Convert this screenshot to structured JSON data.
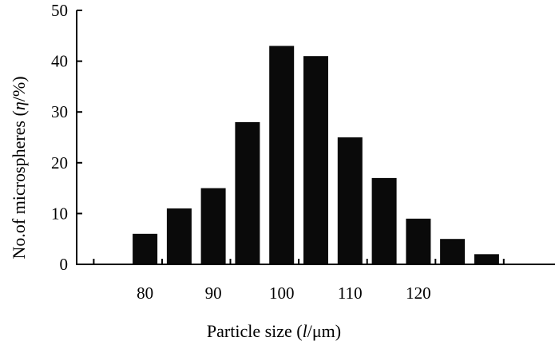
{
  "chart_data": {
    "type": "bar",
    "categories": [
      "80",
      "85",
      "90",
      "95",
      "100",
      "105",
      "110",
      "115",
      "120",
      "125",
      "130"
    ],
    "values": [
      6,
      11,
      15,
      28,
      43,
      41,
      25,
      17,
      9,
      5,
      2
    ],
    "xlabel": {
      "prefix": "Particle size (",
      "symbol": "l",
      "suffix": "/μm)"
    },
    "ylabel": {
      "prefix": "No.of microspheres (",
      "symbol": "η",
      "suffix": "/%)"
    },
    "ylim": [
      0,
      50
    ],
    "yticks": [
      0,
      10,
      20,
      30,
      40,
      50
    ],
    "xticks": [
      80,
      90,
      100,
      110,
      120
    ],
    "xlim": [
      70,
      140
    ],
    "grid": false,
    "legend": "none",
    "bar_color": "#0a0a0a",
    "axis_color": "#000000"
  }
}
